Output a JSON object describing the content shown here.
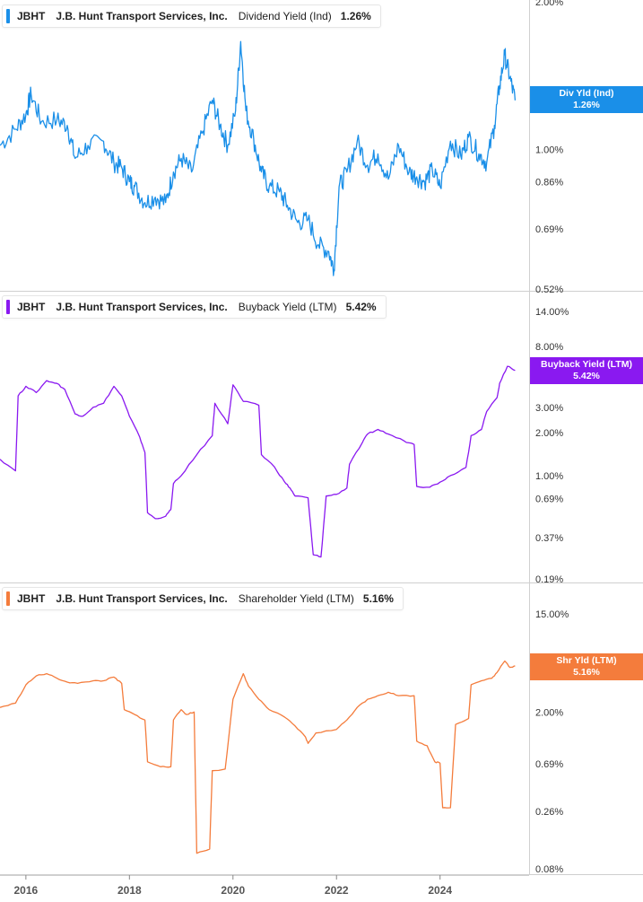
{
  "colors": {
    "dividend": "#1a8fe8",
    "buyback": "#8a19f0",
    "shareholder": "#f47c3c"
  },
  "x_axis": {
    "ticks": [
      "2016",
      "2018",
      "2020",
      "2022",
      "2024"
    ]
  },
  "chart_data": [
    {
      "type": "line",
      "panel": "dividend",
      "ticker": "JBHT",
      "company": "J.B. Hunt Transport Services, Inc.",
      "metric": "Dividend Yield (Ind)",
      "current_value": "1.26%",
      "tag_line1": "Div Yld (Ind)",
      "tag_line2": "1.26%",
      "y_scale": "log",
      "ylim": [
        0.52,
        2.0
      ],
      "yticks": [
        "2.00%",
        "1.00%",
        "0.86%",
        "0.69%",
        "0.52%"
      ],
      "series": [
        {
          "x": [
            2015.5,
            2015.8,
            2016.0,
            2016.1,
            2016.3,
            2016.6,
            2016.8,
            2016.95,
            2017.2,
            2017.5,
            2017.7,
            2017.85,
            2018.0,
            2018.1,
            2018.3,
            2018.5,
            2018.7,
            2018.85,
            2019.0,
            2019.2,
            2019.4,
            2019.6,
            2019.75,
            2019.9,
            2020.05,
            2020.15,
            2020.25,
            2020.4,
            2020.55,
            2020.7,
            2020.9,
            2021.05,
            2021.25,
            2021.45,
            2021.65,
            2021.85,
            2021.95,
            2022.05,
            2022.2,
            2022.4,
            2022.6,
            2022.8,
            2023.0,
            2023.2,
            2023.4,
            2023.55,
            2023.7,
            2023.85,
            2024.0,
            2024.2,
            2024.4,
            2024.55,
            2024.75,
            2024.9,
            2025.05,
            2025.15,
            2025.25,
            2025.35,
            2025.45
          ],
          "y": [
            1.02,
            1.1,
            1.18,
            1.3,
            1.14,
            1.15,
            1.12,
            0.96,
            1.02,
            1.04,
            0.94,
            0.92,
            0.86,
            0.84,
            0.78,
            0.8,
            0.78,
            0.9,
            0.96,
            0.9,
            1.08,
            1.26,
            1.12,
            1.02,
            1.2,
            1.66,
            1.2,
            1.05,
            0.9,
            0.84,
            0.82,
            0.77,
            0.71,
            0.72,
            0.64,
            0.62,
            0.57,
            0.84,
            0.9,
            1.04,
            0.93,
            0.98,
            0.87,
            1.02,
            0.9,
            0.88,
            0.86,
            0.91,
            0.84,
            1.04,
            0.97,
            1.06,
            0.98,
            0.94,
            1.12,
            1.35,
            1.56,
            1.4,
            1.26
          ]
        }
      ]
    },
    {
      "type": "line",
      "panel": "buyback",
      "ticker": "JBHT",
      "company": "J.B. Hunt Transport Services, Inc.",
      "metric": "Buyback Yield (LTM)",
      "current_value": "5.42%",
      "tag_line1": "Buyback Yield (LTM)",
      "tag_line2": "5.42%",
      "y_scale": "log",
      "ylim": [
        0.19,
        14.0
      ],
      "yticks": [
        "14.00%",
        "8.00%",
        "3.00%",
        "2.00%",
        "1.00%",
        "0.69%",
        "0.37%",
        "0.19%"
      ],
      "series": [
        {
          "x": [
            2015.5,
            2015.8,
            2015.85,
            2016.0,
            2016.2,
            2016.4,
            2016.6,
            2016.75,
            2016.95,
            2017.1,
            2017.3,
            2017.5,
            2017.7,
            2017.85,
            2018.0,
            2018.2,
            2018.3,
            2018.35,
            2018.5,
            2018.7,
            2018.8,
            2018.85,
            2019.0,
            2019.3,
            2019.6,
            2019.65,
            2019.9,
            2020.0,
            2020.2,
            2020.5,
            2020.55,
            2020.8,
            2021.0,
            2021.1,
            2021.2,
            2021.45,
            2021.55,
            2021.7,
            2021.8,
            2022.0,
            2022.2,
            2022.25,
            2022.5,
            2022.6,
            2022.8,
            2023.0,
            2023.3,
            2023.5,
            2023.55,
            2023.8,
            2024.0,
            2024.2,
            2024.5,
            2024.6,
            2024.8,
            2024.9,
            2025.1,
            2025.15,
            2025.3,
            2025.45
          ],
          "y": [
            1.3,
            1.08,
            3.6,
            4.2,
            3.8,
            4.6,
            4.4,
            4.0,
            2.7,
            2.6,
            3.0,
            3.2,
            4.2,
            3.6,
            2.6,
            1.85,
            1.45,
            0.55,
            0.5,
            0.52,
            0.58,
            0.88,
            1.0,
            1.4,
            1.9,
            3.2,
            2.3,
            4.3,
            3.3,
            3.1,
            1.4,
            1.15,
            0.9,
            0.82,
            0.72,
            0.7,
            0.28,
            0.27,
            0.72,
            0.74,
            0.82,
            1.2,
            1.7,
            1.95,
            2.1,
            1.95,
            1.75,
            1.65,
            0.84,
            0.83,
            0.9,
            1.0,
            1.14,
            1.9,
            2.1,
            2.8,
            3.5,
            4.4,
            5.8,
            5.42
          ]
        }
      ]
    },
    {
      "type": "line",
      "panel": "shareholder",
      "ticker": "JBHT",
      "company": "J.B. Hunt Transport Services, Inc.",
      "metric": "Shareholder Yield (LTM)",
      "current_value": "5.16%",
      "tag_line1": "Shr Yld (LTM)",
      "tag_line2": "5.16%",
      "y_scale": "log",
      "ylim": [
        0.08,
        15.0
      ],
      "yticks": [
        "15.00%",
        "2.00%",
        "0.69%",
        "0.26%",
        "0.08%"
      ],
      "series": [
        {
          "x": [
            2015.5,
            2015.8,
            2016.0,
            2016.2,
            2016.4,
            2016.6,
            2016.8,
            2017.0,
            2017.3,
            2017.5,
            2017.7,
            2017.85,
            2017.9,
            2018.1,
            2018.3,
            2018.35,
            2018.6,
            2018.8,
            2018.85,
            2019.0,
            2019.1,
            2019.25,
            2019.3,
            2019.55,
            2019.6,
            2019.85,
            2020.0,
            2020.2,
            2020.3,
            2020.5,
            2020.7,
            2021.0,
            2021.2,
            2021.4,
            2021.45,
            2021.6,
            2022.0,
            2022.2,
            2022.4,
            2022.6,
            2022.8,
            2023.0,
            2023.2,
            2023.5,
            2023.55,
            2023.75,
            2023.9,
            2024.0,
            2024.05,
            2024.2,
            2024.3,
            2024.55,
            2024.6,
            2024.8,
            2025.0,
            2025.1,
            2025.25,
            2025.35,
            2025.45
          ],
          "y": [
            2.2,
            2.4,
            3.5,
            4.2,
            4.4,
            4.0,
            3.7,
            3.6,
            3.8,
            3.8,
            4.1,
            3.6,
            2.1,
            1.9,
            1.7,
            0.72,
            0.65,
            0.65,
            1.7,
            2.1,
            1.9,
            2.0,
            0.11,
            0.12,
            0.6,
            0.62,
            2.6,
            4.4,
            3.4,
            2.6,
            2.1,
            1.8,
            1.5,
            1.2,
            1.05,
            1.3,
            1.4,
            1.7,
            2.2,
            2.6,
            2.8,
            3.0,
            2.8,
            2.8,
            1.1,
            1.0,
            0.72,
            0.7,
            0.28,
            0.28,
            1.55,
            1.75,
            3.5,
            3.8,
            4.0,
            4.5,
            5.7,
            5.0,
            5.16
          ]
        }
      ]
    }
  ]
}
